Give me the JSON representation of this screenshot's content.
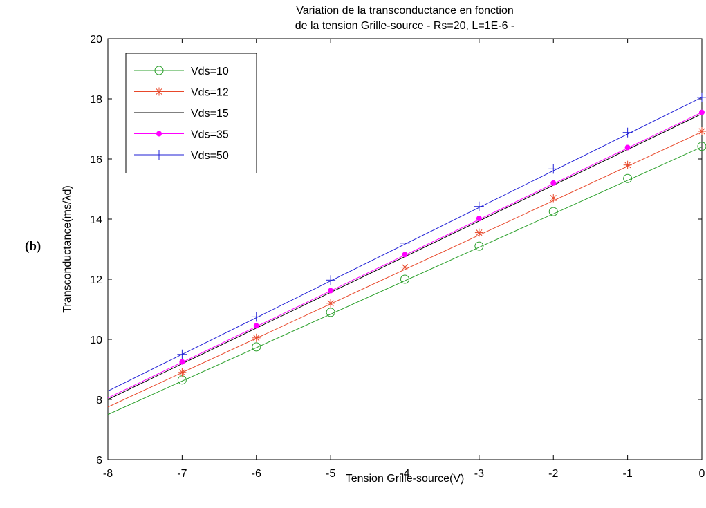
{
  "panel_label": "(b)",
  "chart_data": {
    "type": "line",
    "title": [
      "Variation de la  transconductance en fonction",
      "de la tension Grille-source - Rs=20, L=1E-6 -"
    ],
    "xlabel": "Tension Grille-source(V)",
    "ylabel": "Transconductance(ms/λd)",
    "xlim": [
      -8,
      0
    ],
    "ylim": [
      6,
      20
    ],
    "xticks": [
      -8,
      -7,
      -6,
      -5,
      -4,
      -3,
      -2,
      -1,
      0
    ],
    "yticks": [
      6,
      8,
      10,
      12,
      14,
      16,
      18,
      20
    ],
    "grid": false,
    "legend_position": "top-left",
    "series": [
      {
        "name": "Vds=10",
        "color": "#2ca02c",
        "marker": "circle-open",
        "line": [
          [
            -8,
            7.5
          ],
          [
            0,
            16.4
          ]
        ],
        "x": [
          -7,
          -6,
          -5,
          -4,
          -3,
          -2,
          -1,
          0
        ],
        "y": [
          8.65,
          9.75,
          10.9,
          12.0,
          13.1,
          14.25,
          15.35,
          16.42
        ]
      },
      {
        "name": "Vds=12",
        "color": "#e8482a",
        "marker": "asterisk",
        "line": [
          [
            -8,
            7.75
          ],
          [
            0,
            16.9
          ]
        ],
        "x": [
          -7,
          -6,
          -5,
          -4,
          -3,
          -2,
          -1,
          0
        ],
        "y": [
          8.9,
          10.05,
          11.2,
          12.4,
          13.55,
          14.7,
          15.8,
          16.92
        ]
      },
      {
        "name": "Vds=15",
        "color": "#000000",
        "marker": "none",
        "line": [
          [
            -8,
            8.0
          ],
          [
            0,
            17.5
          ]
        ],
        "x": [],
        "y": []
      },
      {
        "name": "Vds=35",
        "color": "#ff00ff",
        "marker": "dot",
        "line": [
          [
            -8,
            8.05
          ],
          [
            0,
            17.55
          ]
        ],
        "x": [
          -7,
          -6,
          -5,
          -4,
          -3,
          -2,
          -1,
          0
        ],
        "y": [
          9.25,
          10.45,
          11.62,
          12.82,
          14.02,
          15.2,
          16.38,
          17.55
        ]
      },
      {
        "name": "Vds=50",
        "color": "#1f1fd6",
        "marker": "plus",
        "line": [
          [
            -8,
            8.28
          ],
          [
            0,
            18.05
          ]
        ],
        "x": [
          -7,
          -6,
          -5,
          -4,
          -3,
          -2,
          -1,
          0
        ],
        "y": [
          9.5,
          10.75,
          11.97,
          13.2,
          14.42,
          15.67,
          16.88,
          18.05
        ]
      }
    ]
  }
}
